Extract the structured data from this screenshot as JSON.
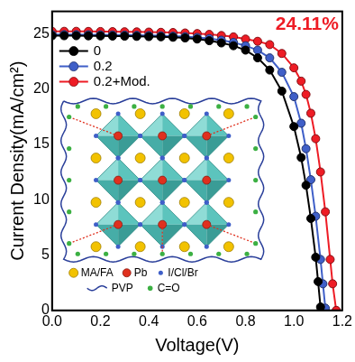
{
  "chart_data": {
    "type": "line",
    "annotation": "24.11%",
    "x_label": "Voltage(V)",
    "y_label": "Current Density(mA/cm²)",
    "xlim": [
      0,
      1.2
    ],
    "xticks": [
      {
        "value": 0,
        "label": "0.0"
      },
      0.2,
      0.4,
      0.6,
      0.8,
      {
        "value": 1,
        "label": "1.0"
      },
      1.2
    ],
    "ylim": [
      0,
      27
    ],
    "yticks": [
      0,
      5,
      10,
      15,
      20,
      25
    ],
    "grid": false,
    "legend": "upper left",
    "series": [
      {
        "name": "0",
        "color": "#000000",
        "marker": "circle",
        "line_style": "solid",
        "x": [
          0,
          0.05,
          0.1,
          0.15,
          0.2,
          0.25,
          0.3,
          0.35,
          0.4,
          0.45,
          0.5,
          0.55,
          0.6,
          0.65,
          0.7,
          0.75,
          0.8,
          0.85,
          0.9,
          0.95,
          1.0,
          1.03,
          1.05,
          1.07,
          1.09,
          1.1,
          1.11
        ],
        "values": [
          24.8,
          24.8,
          24.8,
          24.79,
          24.78,
          24.77,
          24.76,
          24.74,
          24.72,
          24.7,
          24.66,
          24.6,
          24.5,
          24.35,
          24.15,
          23.9,
          23.5,
          22.8,
          21.7,
          19.8,
          16.6,
          13.8,
          11.3,
          8.3,
          4.8,
          2.6,
          0.3
        ]
      },
      {
        "name": "0.2",
        "color": "#3f5fc8",
        "marker": "circle",
        "line_style": "solid",
        "x": [
          0,
          0.05,
          0.1,
          0.15,
          0.2,
          0.25,
          0.3,
          0.35,
          0.4,
          0.45,
          0.5,
          0.55,
          0.6,
          0.65,
          0.7,
          0.75,
          0.8,
          0.85,
          0.9,
          0.95,
          1.0,
          1.03,
          1.05,
          1.07,
          1.09,
          1.11,
          1.12,
          1.13
        ],
        "values": [
          24.9,
          24.9,
          24.9,
          24.89,
          24.88,
          24.87,
          24.86,
          24.84,
          24.82,
          24.8,
          24.77,
          24.72,
          24.65,
          24.55,
          24.4,
          24.2,
          23.9,
          23.5,
          22.8,
          21.5,
          19.3,
          16.9,
          14.6,
          11.8,
          8.5,
          4.6,
          2.4,
          0.2
        ]
      },
      {
        "name": "0.2+Mod.",
        "color": "#ee1c25",
        "marker": "circle",
        "line_style": "solid",
        "x": [
          0,
          0.05,
          0.1,
          0.15,
          0.2,
          0.25,
          0.3,
          0.35,
          0.4,
          0.45,
          0.5,
          0.55,
          0.6,
          0.65,
          0.7,
          0.75,
          0.8,
          0.85,
          0.9,
          0.95,
          1.0,
          1.03,
          1.05,
          1.07,
          1.09,
          1.11,
          1.13,
          1.15,
          1.16,
          1.175
        ],
        "values": [
          25.2,
          25.2,
          25.2,
          25.19,
          25.18,
          25.17,
          25.16,
          25.15,
          25.13,
          25.11,
          25.09,
          25.05,
          25.0,
          24.92,
          24.82,
          24.7,
          24.5,
          24.3,
          24.0,
          23.2,
          21.9,
          20.7,
          19.5,
          17.8,
          15.5,
          12.5,
          8.9,
          4.6,
          2.4,
          0
        ]
      }
    ],
    "inset_labels": [
      "MA/FA",
      "Pb",
      "I/Cl/Br",
      "PVP",
      "C=O"
    ]
  }
}
